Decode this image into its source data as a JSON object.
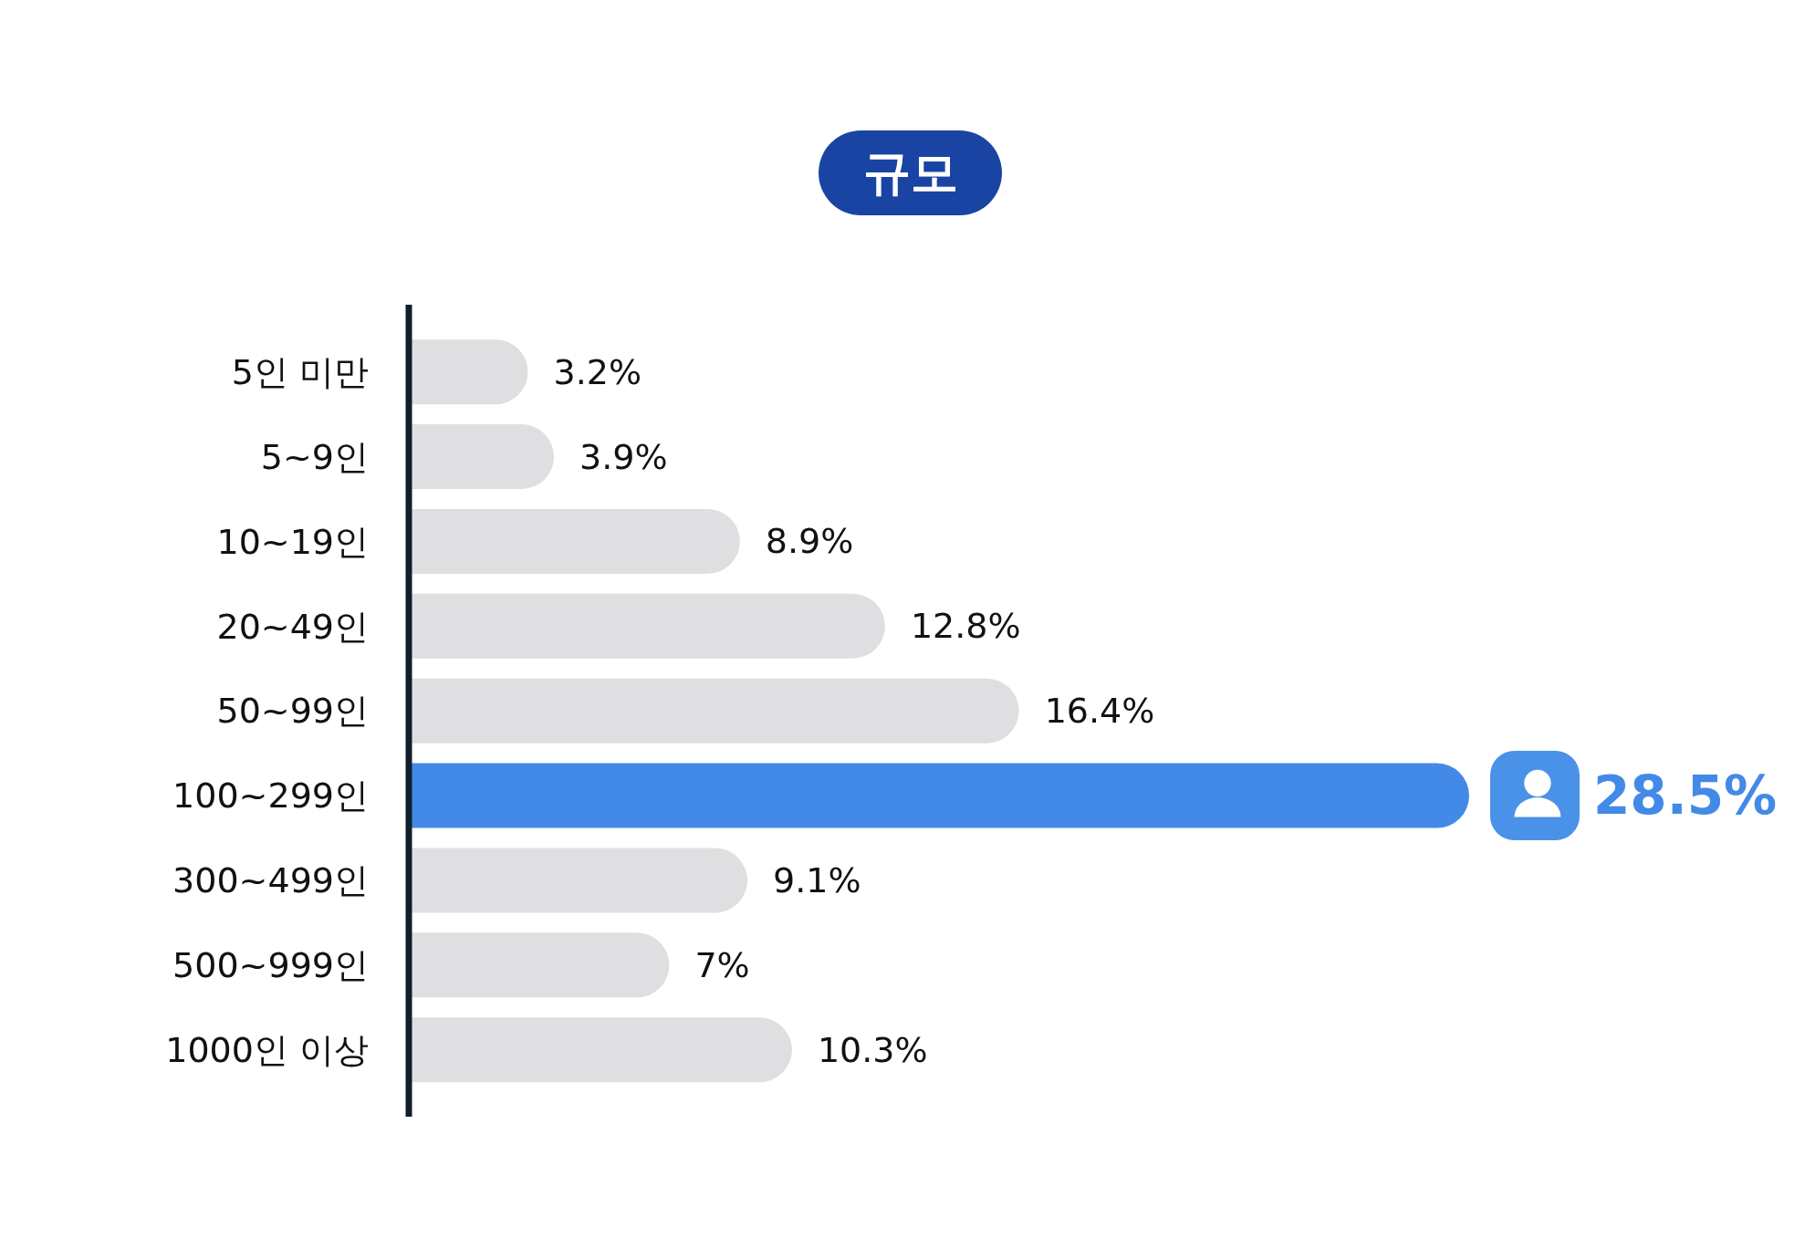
{
  "chart_data": {
    "type": "bar",
    "orientation": "horizontal",
    "title": "규모",
    "categories": [
      "5인 미만",
      "5~9인",
      "10~19인",
      "20~49인",
      "50~99인",
      "100~299인",
      "300~499인",
      "500~999인",
      "1000인 이상"
    ],
    "values": [
      3.2,
      3.9,
      8.9,
      12.8,
      16.4,
      28.5,
      9.1,
      7,
      10.3
    ],
    "value_labels": [
      "3.2%",
      "3.9%",
      "8.9%",
      "12.8%",
      "16.4%",
      "28.5%",
      "9.1%",
      "7%",
      "10.3%"
    ],
    "colors": [
      "#dfdfe1",
      "#dfdfe1",
      "#dfdfe1",
      "#dfdfe1",
      "#dfdfe1",
      "#438ae8",
      "#dfdfe1",
      "#dfdfe1",
      "#dfdfe1"
    ]
  }
}
